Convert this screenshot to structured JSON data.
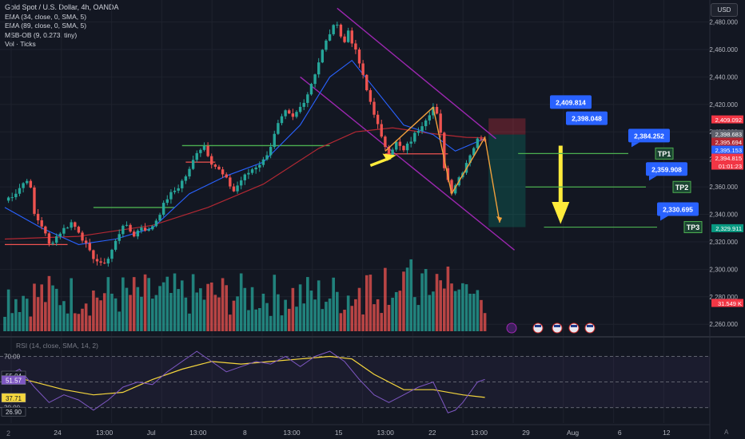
{
  "legend": {
    "title": "Gold Spot / U.S. Dollar, 4h, OANDA",
    "ema34": "EMA (34, close, 0, SMA, 5)",
    "ema89": "EMA (89, close, 0, SMA, 5)",
    "msb": "MSB-OB (9, 0.273, tiny)",
    "vol": "Vol · Ticks"
  },
  "currency": "USD",
  "rsi_legend": "RSI (14, close, SMA, 14, 2)",
  "corner_left": "2",
  "corner_right": "A",
  "colors": {
    "background": "#131722",
    "up": "#26a69a",
    "down": "#ef5350",
    "ema34": "#2962ff",
    "ema89": "#b22833",
    "channel": "#9c27b0",
    "zigzag": "#f0a03c",
    "arrow": "#ffeb3b",
    "tp_line": "#4caf50",
    "label_blue": "#2962ff",
    "rsi": "#7e57c2",
    "rsi_ma": "#f5d63d"
  },
  "chart_data": [
    {
      "type": "candlestick",
      "title": "Gold Spot / U.S. Dollar, 4h, OANDA",
      "x_ticks": [
        "24",
        "13:00",
        "Jul",
        "13:00",
        "8",
        "13:00",
        "15",
        "13:00",
        "22",
        "13:00",
        "29",
        "Aug",
        "6",
        "12"
      ],
      "y_ticks": [
        2480,
        2460,
        2440,
        2420,
        2400,
        2380,
        2360,
        2340,
        2320,
        2300,
        2280,
        2260
      ],
      "y_tick_labels": [
        "2,480.000",
        "2,460.000",
        "2,440.000",
        "2,420.000",
        "2,400.000",
        "2,380.000",
        "2,360.000",
        "2,340.000",
        "2,320.000",
        "2,300.000",
        "2,280.000",
        "2,260.000"
      ],
      "ylim": [
        2252,
        2496
      ],
      "path_points": [
        [
          0,
          2350
        ],
        [
          3,
          2356
        ],
        [
          6,
          2366
        ],
        [
          7,
          2358
        ],
        [
          8,
          2340
        ],
        [
          10,
          2332
        ],
        [
          12,
          2318
        ],
        [
          15,
          2327
        ],
        [
          18,
          2334
        ],
        [
          20,
          2328
        ],
        [
          23,
          2312
        ],
        [
          26,
          2303
        ],
        [
          28,
          2308
        ],
        [
          30,
          2320
        ],
        [
          32,
          2333
        ],
        [
          35,
          2325
        ],
        [
          37,
          2331
        ],
        [
          39,
          2328
        ],
        [
          41,
          2336
        ],
        [
          44,
          2352
        ],
        [
          47,
          2360
        ],
        [
          50,
          2372
        ],
        [
          52,
          2386
        ],
        [
          54,
          2390
        ],
        [
          56,
          2378
        ],
        [
          58,
          2372
        ],
        [
          60,
          2365
        ],
        [
          62,
          2357
        ],
        [
          64,
          2365
        ],
        [
          67,
          2373
        ],
        [
          70,
          2379
        ],
        [
          72,
          2390
        ],
        [
          74,
          2405
        ],
        [
          76,
          2414
        ],
        [
          78,
          2410
        ],
        [
          80,
          2418
        ],
        [
          82,
          2428
        ],
        [
          84,
          2443
        ],
        [
          86,
          2459
        ],
        [
          88,
          2472
        ],
        [
          90,
          2480
        ],
        [
          91,
          2470
        ],
        [
          92,
          2465
        ],
        [
          93,
          2474
        ],
        [
          94,
          2466
        ],
        [
          96,
          2450
        ],
        [
          98,
          2430
        ],
        [
          100,
          2414
        ],
        [
          102,
          2395
        ],
        [
          104,
          2385
        ],
        [
          106,
          2392
        ],
        [
          108,
          2386
        ],
        [
          110,
          2394
        ],
        [
          112,
          2402
        ],
        [
          114,
          2410
        ],
        [
          116,
          2418
        ],
        [
          117,
          2412
        ],
        [
          118,
          2398
        ],
        [
          119,
          2375
        ],
        [
          120,
          2365
        ],
        [
          121,
          2357
        ],
        [
          122,
          2362
        ],
        [
          124,
          2372
        ],
        [
          126,
          2384
        ],
        [
          128,
          2394
        ],
        [
          129,
          2396
        ],
        [
          130,
          2394.8
        ]
      ],
      "ema34": [
        [
          0,
          2345
        ],
        [
          10,
          2330
        ],
        [
          20,
          2318
        ],
        [
          30,
          2322
        ],
        [
          40,
          2330
        ],
        [
          50,
          2355
        ],
        [
          60,
          2368
        ],
        [
          70,
          2378
        ],
        [
          80,
          2405
        ],
        [
          88,
          2440
        ],
        [
          94,
          2452
        ],
        [
          100,
          2432
        ],
        [
          108,
          2405
        ],
        [
          116,
          2398
        ],
        [
          122,
          2386
        ],
        [
          130,
          2395.2
        ]
      ],
      "ema89": [
        [
          0,
          2322
        ],
        [
          20,
          2324
        ],
        [
          40,
          2332
        ],
        [
          55,
          2345
        ],
        [
          70,
          2362
        ],
        [
          85,
          2388
        ],
        [
          95,
          2400
        ],
        [
          105,
          2403
        ],
        [
          115,
          2399
        ],
        [
          125,
          2396
        ],
        [
          130,
          2395.7
        ]
      ],
      "volume_scale": [
        0,
        100
      ],
      "channel": {
        "upper": [
          [
            90,
            2490
          ],
          [
            133,
            2395
          ]
        ],
        "lower": [
          [
            80,
            2440
          ],
          [
            138,
            2314
          ]
        ]
      },
      "structure_levels": [
        {
          "color": "green",
          "from": 48,
          "to": 88,
          "value": 2390
        },
        {
          "color": "green",
          "from": 24,
          "to": 46,
          "value": 2345
        },
        {
          "color": "red",
          "from": 0,
          "to": 17,
          "value": 2318
        },
        {
          "color": "red",
          "from": 49,
          "to": 57,
          "value": 2378
        },
        {
          "color": "red",
          "from": 103,
          "to": 120,
          "value": 2384
        }
      ],
      "zigzag": [
        [
          103,
          2386
        ],
        [
          116,
          2418
        ],
        [
          121,
          2355
        ],
        [
          130,
          2396
        ],
        [
          134,
          2334
        ]
      ],
      "short_position": {
        "entry": 2398.048,
        "stop": 2409.814,
        "target": 2330.695
      },
      "targets": [
        {
          "label": "TP1",
          "value": 2384.252,
          "price_label": "2,384.252"
        },
        {
          "label": "TP2",
          "value": 2359.908,
          "price_label": "2,359.908"
        },
        {
          "label": "TP3",
          "value": 2330.695,
          "price_label": "2,330.695"
        }
      ],
      "entry_labels": [
        {
          "value": 2409.814,
          "price_label": "2,409.814"
        },
        {
          "value": 2398.048,
          "price_label": "2,398.048"
        }
      ],
      "price_tags": [
        {
          "label": "2,409.092",
          "value": 2409.092,
          "color": "#f23645"
        },
        {
          "label": "2,398.683",
          "value": 2398.683,
          "color": "#5d606b"
        },
        {
          "label": "2,395.694",
          "value": 2395.694,
          "color": "#b22833"
        },
        {
          "label": "2,395.153",
          "value": 2395.153,
          "color": "#2962ff"
        },
        {
          "label": "2,394.815",
          "value": 2394.815,
          "color": "#f23645"
        },
        {
          "label": "01:01:23",
          "value": 2389.3,
          "color": "#f23645"
        },
        {
          "label": "2,329.911",
          "value": 2329.911,
          "color": "#089981"
        },
        {
          "label": "31.549 K",
          "value": 2275.5,
          "color": "#f23645"
        }
      ]
    },
    {
      "type": "line",
      "title": "RSI (14, close, SMA, 14, 2)",
      "ylim": [
        18,
        84
      ],
      "levels": [
        70,
        50,
        30
      ],
      "level_labels": [
        "70.00",
        "50.00",
        "30.00"
      ],
      "value_tags": [
        {
          "label": "55.04",
          "value": 55.04,
          "color": "#d1d4dc",
          "bg": "#131722"
        },
        {
          "label": "51.57",
          "value": 51.57,
          "color": "#ffffff",
          "bg": "#7e57c2"
        },
        {
          "label": "37.71",
          "value": 37.71,
          "color": "#131722",
          "bg": "#f5d63d"
        },
        {
          "label": "26.90",
          "value": 26.9,
          "color": "#d1d4dc",
          "bg": "#131722"
        }
      ],
      "rsi": [
        [
          0,
          54
        ],
        [
          4,
          60
        ],
        [
          8,
          46
        ],
        [
          12,
          34
        ],
        [
          16,
          40
        ],
        [
          20,
          36
        ],
        [
          24,
          28
        ],
        [
          28,
          36
        ],
        [
          32,
          46
        ],
        [
          36,
          50
        ],
        [
          40,
          48
        ],
        [
          44,
          58
        ],
        [
          48,
          66
        ],
        [
          52,
          74
        ],
        [
          56,
          66
        ],
        [
          60,
          58
        ],
        [
          64,
          62
        ],
        [
          68,
          66
        ],
        [
          72,
          64
        ],
        [
          76,
          70
        ],
        [
          80,
          62
        ],
        [
          84,
          70
        ],
        [
          88,
          74
        ],
        [
          92,
          66
        ],
        [
          96,
          52
        ],
        [
          100,
          40
        ],
        [
          104,
          34
        ],
        [
          108,
          40
        ],
        [
          112,
          46
        ],
        [
          116,
          50
        ],
        [
          118,
          38
        ],
        [
          120,
          26
        ],
        [
          122,
          28
        ],
        [
          124,
          34
        ],
        [
          126,
          42
        ],
        [
          128,
          50
        ],
        [
          130,
          52
        ]
      ],
      "rsi_ma": [
        [
          0,
          56
        ],
        [
          8,
          50
        ],
        [
          16,
          44
        ],
        [
          24,
          40
        ],
        [
          32,
          42
        ],
        [
          40,
          52
        ],
        [
          48,
          60
        ],
        [
          56,
          66
        ],
        [
          64,
          64
        ],
        [
          72,
          66
        ],
        [
          80,
          68
        ],
        [
          88,
          70
        ],
        [
          94,
          68
        ],
        [
          100,
          56
        ],
        [
          108,
          44
        ],
        [
          116,
          44
        ],
        [
          124,
          40
        ],
        [
          130,
          38
        ]
      ]
    }
  ]
}
